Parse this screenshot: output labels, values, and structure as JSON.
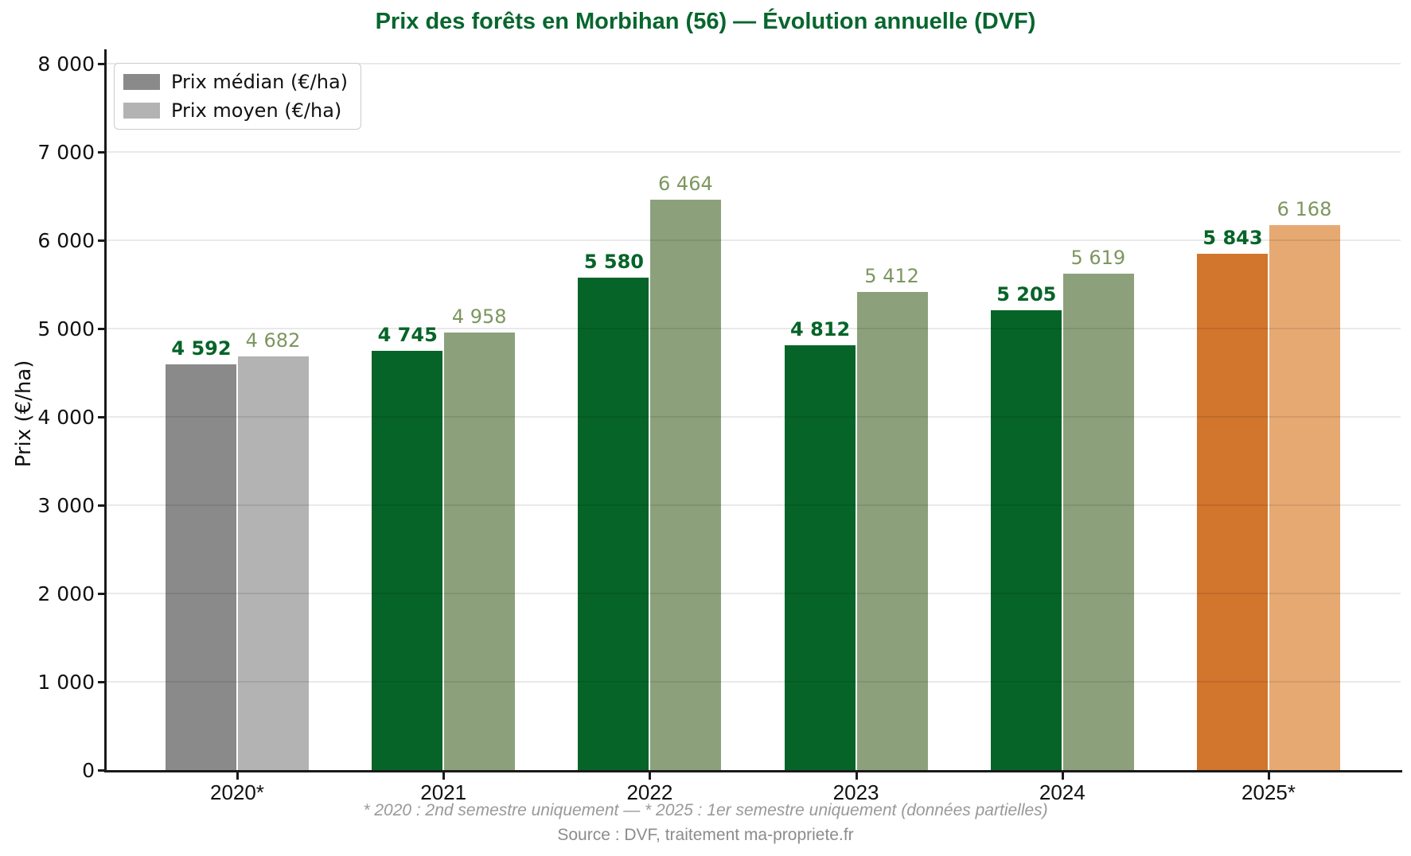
{
  "title": "Prix des forêts en Morbihan (56) — Évolution annuelle (DVF)",
  "ylabel": "Prix (€/ha)",
  "footnote": "* 2020 : 2nd semestre uniquement — * 2025 : 1er semestre uniquement (données partielles)",
  "source": "Source : DVF, traitement ma-propriete.fr",
  "legend": {
    "position": "upper left",
    "items": [
      {
        "label": "Prix médian (€/ha)",
        "swatch": "#8A8A8A"
      },
      {
        "label": "Prix moyen (€/ha)",
        "swatch": "#B3B3B3"
      }
    ]
  },
  "colors": {
    "title_green": "#07662E",
    "axis": "#1a1a1a",
    "median_green": "#066428",
    "mean_sage": "#8CA17B",
    "median_gray": "#8A8A8A",
    "mean_gray": "#B3B3B3",
    "median_orange": "#D2752D",
    "mean_orange": "#E6A972",
    "median_label": "#066428",
    "mean_label": "#7D965F",
    "footnote_gray": "#999999",
    "source_gray": "#8C8C8C"
  },
  "chart_data": {
    "type": "bar",
    "title": "Prix des forêts en Morbihan (56) — Évolution annuelle (DVF)",
    "xlabel": "",
    "ylabel": "Prix (€/ha)",
    "categories": [
      "2020*",
      "2021",
      "2022",
      "2023",
      "2024",
      "2025*"
    ],
    "series": [
      {
        "name": "Prix médian (€/ha)",
        "values": [
          4592,
          4745,
          5580,
          4812,
          5205,
          5843
        ],
        "labels": [
          "4 592",
          "4 745",
          "5 580",
          "4 812",
          "5 205",
          "5 843"
        ],
        "bar_colors": [
          "#8A8A8A",
          "#066428",
          "#066428",
          "#066428",
          "#066428",
          "#D2752D"
        ],
        "label_color": "#066428",
        "label_bold": true
      },
      {
        "name": "Prix moyen (€/ha)",
        "values": [
          4682,
          4958,
          6464,
          5412,
          5619,
          6168
        ],
        "labels": [
          "4 682",
          "4 958",
          "6 464",
          "5 412",
          "5 619",
          "6 168"
        ],
        "bar_colors": [
          "#B3B3B3",
          "#8CA17B",
          "#8CA17B",
          "#8CA17B",
          "#8CA17B",
          "#E6A972"
        ],
        "label_color": "#7D965F",
        "label_bold": false
      }
    ],
    "ylim": [
      0,
      8000
    ],
    "yticks": [
      {
        "value": 0,
        "label": "0"
      },
      {
        "value": 1000,
        "label": "1 000"
      },
      {
        "value": 2000,
        "label": "2 000"
      },
      {
        "value": 3000,
        "label": "3 000"
      },
      {
        "value": 4000,
        "label": "4 000"
      },
      {
        "value": 5000,
        "label": "5 000"
      },
      {
        "value": 6000,
        "label": "6 000"
      },
      {
        "value": 7000,
        "label": "7 000"
      },
      {
        "value": 8000,
        "label": "8 000"
      }
    ],
    "grid": true,
    "legend_position": "upper left"
  }
}
